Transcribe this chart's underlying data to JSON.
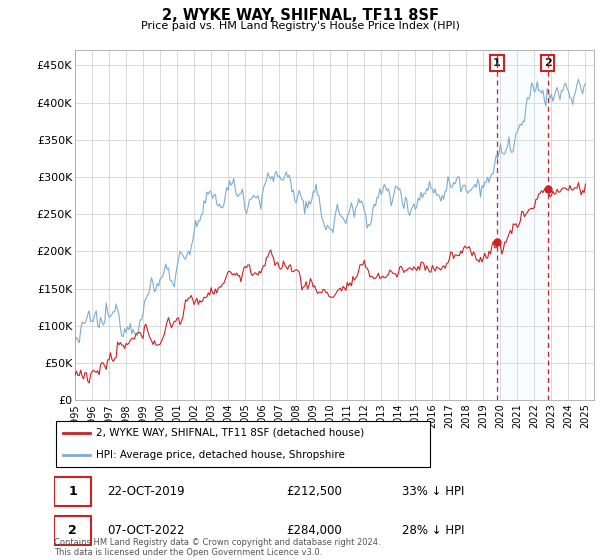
{
  "title": "2, WYKE WAY, SHIFNAL, TF11 8SF",
  "subtitle": "Price paid vs. HM Land Registry's House Price Index (HPI)",
  "ylabel_ticks": [
    "£0",
    "£50K",
    "£100K",
    "£150K",
    "£200K",
    "£250K",
    "£300K",
    "£350K",
    "£400K",
    "£450K"
  ],
  "ytick_values": [
    0,
    50000,
    100000,
    150000,
    200000,
    250000,
    300000,
    350000,
    400000,
    450000
  ],
  "ylim": [
    0,
    470000
  ],
  "xlim_start": 1995.0,
  "xlim_end": 2025.5,
  "hpi_color": "#7aadd4",
  "hpi_shade_color": "#ddeeff",
  "price_color": "#cc2222",
  "dashed_line_color": "#cc2222",
  "annotation_box_color": "#cc2222",
  "transaction1_x": 2019.8,
  "transaction1_y": 212500,
  "transaction1_label": "1",
  "transaction1_date": "22-OCT-2019",
  "transaction1_price": "£212,500",
  "transaction1_note": "33% ↓ HPI",
  "transaction2_x": 2022.77,
  "transaction2_y": 284000,
  "transaction2_label": "2",
  "transaction2_date": "07-OCT-2022",
  "transaction2_price": "£284,000",
  "transaction2_note": "28% ↓ HPI",
  "legend_line1": "2, WYKE WAY, SHIFNAL, TF11 8SF (detached house)",
  "legend_line2": "HPI: Average price, detached house, Shropshire",
  "footer": "Contains HM Land Registry data © Crown copyright and database right 2024.\nThis data is licensed under the Open Government Licence v3.0.",
  "xtick_years": [
    1995,
    1996,
    1997,
    1998,
    1999,
    2000,
    2001,
    2002,
    2003,
    2004,
    2005,
    2006,
    2007,
    2008,
    2009,
    2010,
    2011,
    2012,
    2013,
    2014,
    2015,
    2016,
    2017,
    2018,
    2019,
    2020,
    2021,
    2022,
    2023,
    2024,
    2025
  ]
}
